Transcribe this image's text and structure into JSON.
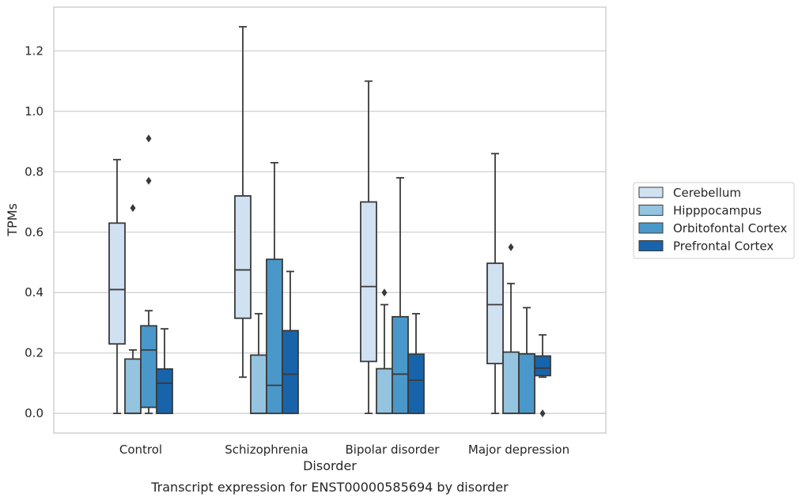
{
  "chart_data": {
    "type": "box",
    "caption": "Transcript expression for ENST00000585694 by disorder",
    "xlabel": "Disorder",
    "ylabel": "TPMs",
    "categories": [
      "Control",
      "Schizophrenia",
      "Bipolar disorder",
      "Major depression"
    ],
    "ylim": [
      -0.065,
      1.345
    ],
    "yticks": [
      0.0,
      0.2,
      0.4,
      0.6,
      0.8,
      1.0,
      1.2
    ],
    "ytick_labels": [
      "0.0",
      "0.2",
      "0.4",
      "0.6",
      "0.8",
      "1.0",
      "1.2"
    ],
    "grid": "horizontal",
    "legend_position": "right",
    "series": [
      {
        "name": "Cerebellum",
        "color": "#d0e1f2",
        "boxes": [
          {
            "whislo": 0.0,
            "q1": 0.23,
            "med": 0.41,
            "q3": 0.63,
            "whishi": 0.84,
            "fliers": []
          },
          {
            "whislo": 0.12,
            "q1": 0.315,
            "med": 0.475,
            "q3": 0.72,
            "whishi": 1.28,
            "fliers": []
          },
          {
            "whislo": 0.0,
            "q1": 0.172,
            "med": 0.42,
            "q3": 0.7,
            "whishi": 1.1,
            "fliers": []
          },
          {
            "whislo": 0.0,
            "q1": 0.165,
            "med": 0.36,
            "q3": 0.497,
            "whishi": 0.86,
            "fliers": []
          }
        ]
      },
      {
        "name": "Hipppocampus",
        "color": "#94c4df",
        "boxes": [
          {
            "whislo": 0.0,
            "q1": 0.0,
            "med": 0.0,
            "q3": 0.18,
            "whishi": 0.21,
            "fliers": [
              0.68
            ]
          },
          {
            "whislo": 0.0,
            "q1": 0.0,
            "med": 0.0,
            "q3": 0.193,
            "whishi": 0.33,
            "fliers": []
          },
          {
            "whislo": 0.0,
            "q1": 0.0,
            "med": 0.0,
            "q3": 0.148,
            "whishi": 0.36,
            "fliers": [
              0.4
            ]
          },
          {
            "whislo": 0.0,
            "q1": 0.0,
            "med": 0.0,
            "q3": 0.203,
            "whishi": 0.43,
            "fliers": [
              0.55
            ]
          }
        ]
      },
      {
        "name": "Orbitofontal Cortex",
        "color": "#4a98c9",
        "boxes": [
          {
            "whislo": 0.0,
            "q1": 0.02,
            "med": 0.21,
            "q3": 0.29,
            "whishi": 0.34,
            "fliers": [
              0.77,
              0.91
            ]
          },
          {
            "whislo": 0.0,
            "q1": 0.0,
            "med": 0.093,
            "q3": 0.51,
            "whishi": 0.83,
            "fliers": []
          },
          {
            "whislo": 0.0,
            "q1": 0.0,
            "med": 0.13,
            "q3": 0.32,
            "whishi": 0.78,
            "fliers": []
          },
          {
            "whislo": 0.0,
            "q1": 0.0,
            "med": 0.0,
            "q3": 0.197,
            "whishi": 0.35,
            "fliers": []
          }
        ]
      },
      {
        "name": "Prefrontal Cortex",
        "color": "#1764ab",
        "boxes": [
          {
            "whislo": 0.0,
            "q1": 0.0,
            "med": 0.1,
            "q3": 0.147,
            "whishi": 0.28,
            "fliers": []
          },
          {
            "whislo": 0.0,
            "q1": 0.0,
            "med": 0.13,
            "q3": 0.274,
            "whishi": 0.47,
            "fliers": []
          },
          {
            "whislo": 0.0,
            "q1": 0.0,
            "med": 0.11,
            "q3": 0.196,
            "whishi": 0.33,
            "fliers": []
          },
          {
            "whislo": 0.12,
            "q1": 0.125,
            "med": 0.15,
            "q3": 0.19,
            "whishi": 0.26,
            "fliers": [
              0.0
            ]
          }
        ]
      }
    ]
  }
}
